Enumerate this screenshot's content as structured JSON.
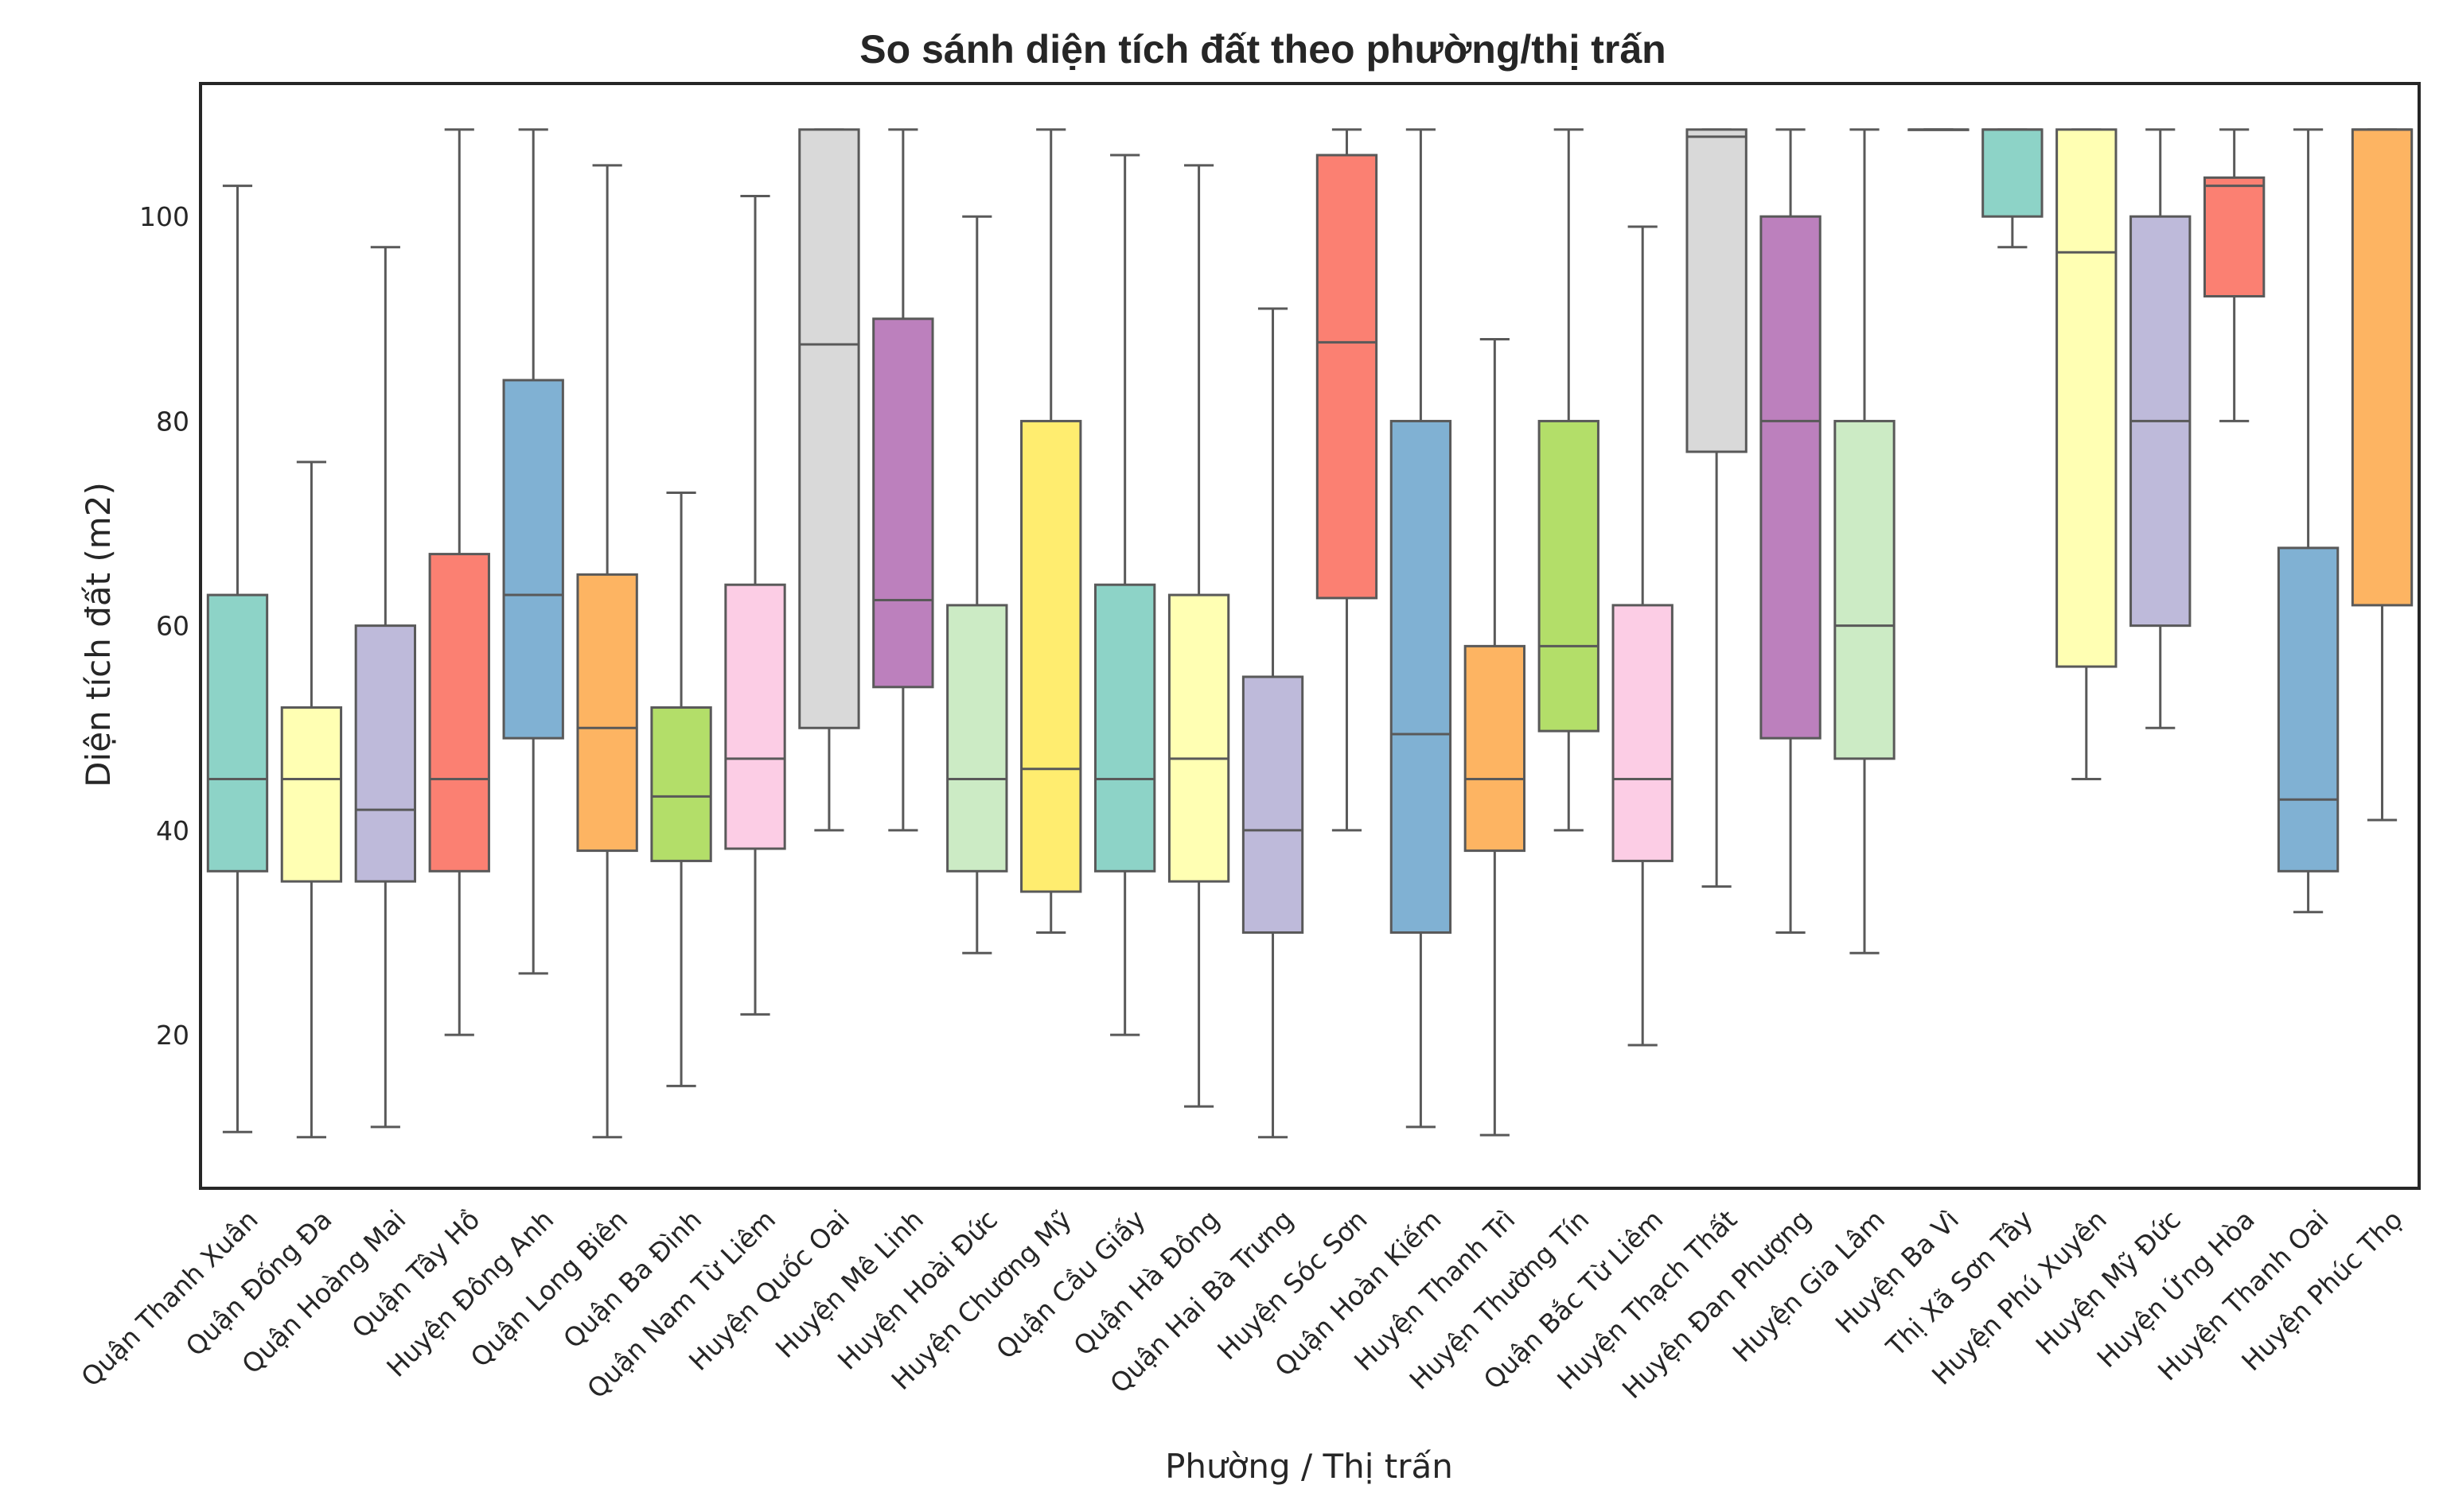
{
  "chart_data": {
    "type": "boxplot",
    "title": "So sánh diện tích đất theo phường/thị trấn",
    "xlabel": "Phường / Thị trấn",
    "ylabel": "Diện tích đất (m2)",
    "ylim": [
      5,
      113
    ],
    "yticks": [
      20,
      40,
      60,
      80,
      100
    ],
    "grid": false,
    "palette": [
      "#8dd3c7",
      "#ffffb3",
      "#bebada",
      "#fb8072",
      "#80b1d3",
      "#fdb462",
      "#b3de69",
      "#fccde5",
      "#d9d9d9",
      "#bc80bd",
      "#ccebc5",
      "#ffed6f"
    ],
    "line_color": "#595959",
    "categories": [
      "Quận Thanh Xuân",
      "Quận Đống Đa",
      "Quận Hoàng Mai",
      "Quận Tây Hồ",
      "Huyện Đông Anh",
      "Quận Long Biên",
      "Quận Ba Đình",
      "Quận Nam Từ Liêm",
      "Huyện Quốc Oai",
      "Huyện Mê Linh",
      "Huyện Hoài Đức",
      "Huyện Chương Mỹ",
      "Quận Cầu Giấy",
      "Quận Hà Đông",
      "Quận Hai Bà Trưng",
      "Huyện Sóc Sơn",
      "Quận Hoàn Kiếm",
      "Huyện Thanh Trì",
      "Huyện Thường Tín",
      "Quận Bắc Từ Liêm",
      "Huyện Thạch Thất",
      "Huyện Đan Phượng",
      "Huyện Gia Lâm",
      "Huyện Ba Vì",
      "Thị Xã Sơn Tây",
      "Huyện Phú Xuyên",
      "Huyện Mỹ Đức",
      "Huyện Ứng Hòa",
      "Huyện Thanh Oai",
      "Huyện Phúc Thọ"
    ],
    "boxes": [
      {
        "whislo": 10.5,
        "q1": 36,
        "med": 45,
        "q3": 63,
        "whishi": 103
      },
      {
        "whislo": 10,
        "q1": 35,
        "med": 45,
        "q3": 52,
        "whishi": 76
      },
      {
        "whislo": 11,
        "q1": 35,
        "med": 42,
        "q3": 60,
        "whishi": 97
      },
      {
        "whislo": 20,
        "q1": 36,
        "med": 45,
        "q3": 67,
        "whishi": 108.5
      },
      {
        "whislo": 26,
        "q1": 49,
        "med": 63,
        "q3": 84,
        "whishi": 108.5
      },
      {
        "whislo": 10,
        "q1": 38,
        "med": 50,
        "q3": 65,
        "whishi": 105
      },
      {
        "whislo": 15,
        "q1": 37,
        "med": 43.3,
        "q3": 52,
        "whishi": 73
      },
      {
        "whislo": 22,
        "q1": 38.2,
        "med": 47,
        "q3": 64,
        "whishi": 102
      },
      {
        "whislo": 40,
        "q1": 50,
        "med": 87.5,
        "q3": 108.5,
        "whishi": 108.5
      },
      {
        "whislo": 40,
        "q1": 54,
        "med": 62.5,
        "q3": 90,
        "whishi": 108.5
      },
      {
        "whislo": 28,
        "q1": 36,
        "med": 45,
        "q3": 62,
        "whishi": 100
      },
      {
        "whislo": 30,
        "q1": 34,
        "med": 46,
        "q3": 80,
        "whishi": 108.5
      },
      {
        "whislo": 20,
        "q1": 36,
        "med": 45,
        "q3": 64,
        "whishi": 106
      },
      {
        "whislo": 13,
        "q1": 35,
        "med": 47,
        "q3": 63,
        "whishi": 105
      },
      {
        "whislo": 10,
        "q1": 30,
        "med": 40,
        "q3": 55,
        "whishi": 91
      },
      {
        "whislo": 40,
        "q1": 62.7,
        "med": 87.7,
        "q3": 106,
        "whishi": 108.5
      },
      {
        "whislo": 11,
        "q1": 30,
        "med": 49.4,
        "q3": 80,
        "whishi": 108.5
      },
      {
        "whislo": 10.2,
        "q1": 38,
        "med": 45,
        "q3": 58,
        "whishi": 88
      },
      {
        "whislo": 40,
        "q1": 49.7,
        "med": 58,
        "q3": 80,
        "whishi": 108.5
      },
      {
        "whislo": 19,
        "q1": 37,
        "med": 45,
        "q3": 62,
        "whishi": 99
      },
      {
        "whislo": 34.5,
        "q1": 77,
        "med": 107.8,
        "q3": 108.5,
        "whishi": 108.5
      },
      {
        "whislo": 30,
        "q1": 49,
        "med": 80,
        "q3": 100,
        "whishi": 108.5
      },
      {
        "whislo": 28,
        "q1": 47,
        "med": 60,
        "q3": 80,
        "whishi": 108.5
      },
      {
        "whislo": 108.5,
        "q1": 108.5,
        "med": 108.5,
        "q3": 108.5,
        "whishi": 108.5
      },
      {
        "whislo": 97,
        "q1": 100,
        "med": 108.5,
        "q3": 108.5,
        "whishi": 108.5
      },
      {
        "whislo": 45,
        "q1": 56,
        "med": 96.5,
        "q3": 108.5,
        "whishi": 108.5
      },
      {
        "whislo": 50,
        "q1": 60,
        "med": 80,
        "q3": 100,
        "whishi": 108.5
      },
      {
        "whislo": 80,
        "q1": 92.2,
        "med": 103,
        "q3": 103.8,
        "whishi": 108.5
      },
      {
        "whislo": 32,
        "q1": 36,
        "med": 43,
        "q3": 67.6,
        "whishi": 108.5
      },
      {
        "whislo": 41,
        "q1": 62,
        "med": 108.5,
        "q3": 108.5,
        "whishi": 108.5
      }
    ]
  }
}
